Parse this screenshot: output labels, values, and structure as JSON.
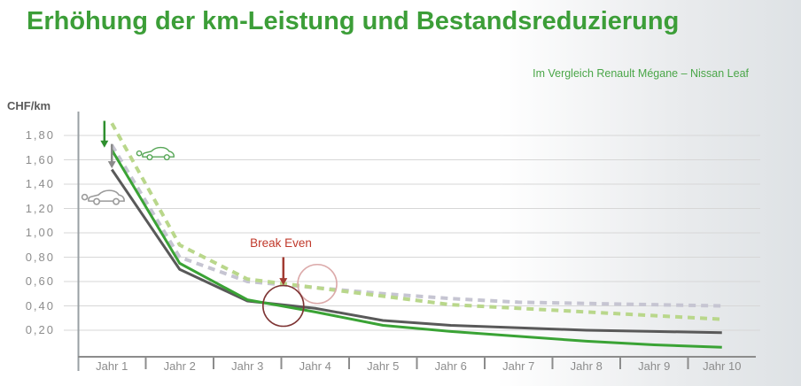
{
  "page": {
    "title": "Erhöhung der km-Leistung und Bestandsreduzierung",
    "subtitle": "Im Vergleich Renault Mégane – Nissan Leaf"
  },
  "colors": {
    "title_green": "#3c9e38",
    "subtitle_green": "#4aa648",
    "axis_gray": "#8c8c8c",
    "grid_gray": "#d7d7d7",
    "break_even_red": "#c0392b",
    "background_right_gray": "#dee2e5"
  },
  "chart_data": {
    "type": "line",
    "ylabel": "CHF/km",
    "xlabel": "",
    "categories": [
      "Jahr 1",
      "Jahr 2",
      "Jahr 3",
      "Jahr 4",
      "Jahr 5",
      "Jahr 6",
      "Jahr 7",
      "Jahr 8",
      "Jahr 9",
      "Jahr 10"
    ],
    "y_tick_labels": [
      "1,80",
      "1,60",
      "1,40",
      "1,20",
      "1,00",
      "0,80",
      "0,60",
      "0,40",
      "0,20"
    ],
    "ylim": [
      0,
      2.0
    ],
    "grid": true,
    "legend": false,
    "series": [
      {
        "id": "megane-baseline-dashed",
        "color": "#c6c5d2",
        "dash": true,
        "values": [
          1.72,
          0.8,
          0.6,
          0.55,
          0.5,
          0.46,
          0.43,
          0.42,
          0.41,
          0.4
        ]
      },
      {
        "id": "leaf-baseline-dashed",
        "color": "#b9d78b",
        "dash": true,
        "values": [
          1.9,
          0.9,
          0.62,
          0.55,
          0.48,
          0.41,
          0.38,
          0.35,
          0.32,
          0.29
        ]
      },
      {
        "id": "megane-increased-solid",
        "color": "#595959",
        "dash": false,
        "values": [
          1.52,
          0.7,
          0.44,
          0.38,
          0.28,
          0.24,
          0.22,
          0.2,
          0.19,
          0.18
        ]
      },
      {
        "id": "leaf-increased-solid",
        "color": "#3aa335",
        "dash": false,
        "values": [
          1.68,
          0.75,
          0.45,
          0.35,
          0.24,
          0.19,
          0.15,
          0.11,
          0.08,
          0.06
        ]
      }
    ],
    "annotations": {
      "break_even": {
        "label": "Break Even",
        "label_color": "#c0392b",
        "arrow": {
          "year": 3.53,
          "from_value": 0.8,
          "to_value": 0.57,
          "color": "#a23b32"
        },
        "solid_lines_circle": {
          "year": 3.53,
          "value": 0.4,
          "radius_px": 23,
          "color": "#7e3434"
        },
        "dashed_lines_circle": {
          "year": 4.03,
          "value": 0.58,
          "radius_px": 22,
          "color": "#dcaaaa"
        }
      },
      "start_arrows": [
        {
          "id": "green-down-arrow",
          "year": 0.89,
          "from_value": 1.92,
          "to_value": 1.7,
          "color": "#2e8f2e"
        },
        {
          "id": "gray-down-arrow",
          "year": 1.0,
          "from_value": 1.73,
          "to_value": 1.53,
          "color": "#8a8a8a"
        }
      ],
      "car_icons": [
        {
          "id": "ev-car-icon",
          "year": 1.65,
          "value": 1.65,
          "color": "#57a657",
          "scale": 0.88
        },
        {
          "id": "combustion-car-icon",
          "year": 0.88,
          "value": 1.29,
          "color": "#9a9a9a",
          "scale": 1.0
        }
      ]
    }
  }
}
